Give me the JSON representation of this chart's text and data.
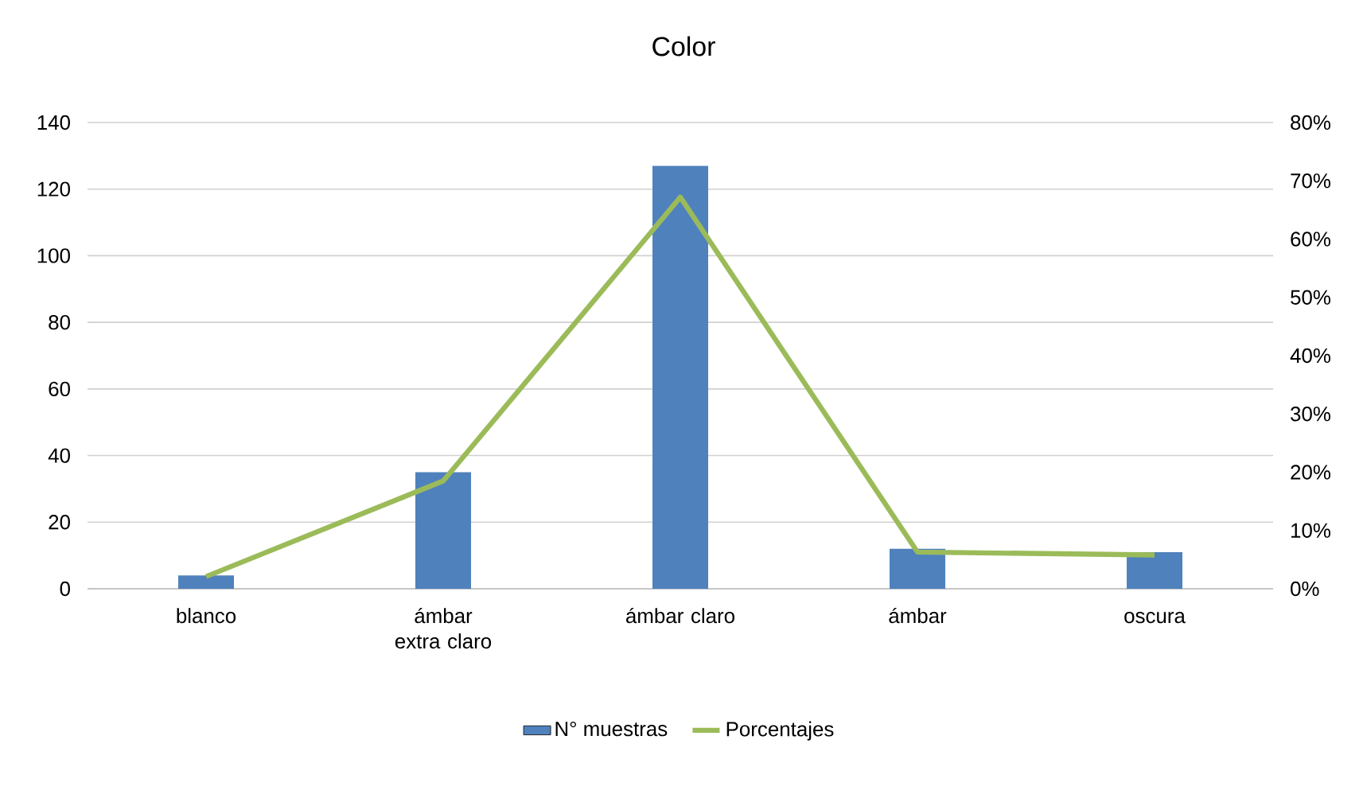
{
  "chart_data": {
    "type": "bar",
    "title": "Color",
    "categories": [
      "blanco",
      "ámbar extra claro",
      "ámbar claro",
      "ámbar",
      "oscura"
    ],
    "series": [
      {
        "name": "N° muestras",
        "color": "#4f81bd",
        "values": [
          4,
          35,
          127,
          12,
          11
        ]
      },
      {
        "name": "Porcentajes",
        "type": "line",
        "axis": "y2",
        "color": "#9bbb59",
        "values": [
          2.1,
          18.5,
          67.2,
          6.3,
          5.8
        ]
      }
    ],
    "ylim": [
      0,
      140
    ],
    "yticks": [
      0,
      20,
      40,
      60,
      80,
      100,
      120,
      140
    ],
    "y2lim": [
      0,
      80
    ],
    "y2ticks": [
      {
        "value": 0,
        "label": "0%"
      },
      {
        "value": 10,
        "label": "10%"
      },
      {
        "value": 20,
        "label": "20%"
      },
      {
        "value": 30,
        "label": "30%"
      },
      {
        "value": 40,
        "label": "40%"
      },
      {
        "value": 50,
        "label": "50%"
      },
      {
        "value": 60,
        "label": "60%"
      },
      {
        "value": 70,
        "label": "70%"
      },
      {
        "value": 80,
        "label": "80%"
      }
    ],
    "grid": "y",
    "legend": "bottom"
  }
}
